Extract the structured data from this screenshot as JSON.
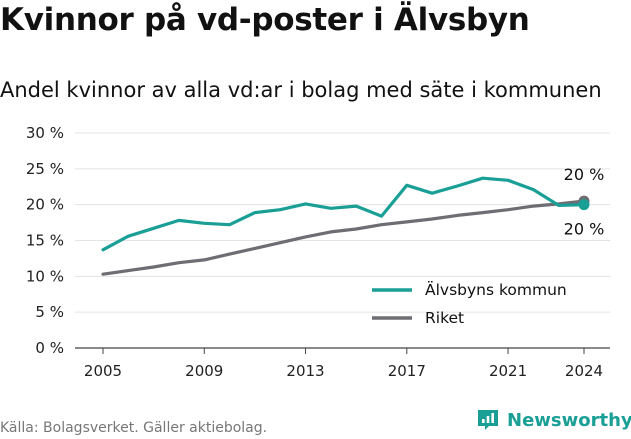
{
  "header": {
    "title": "Kvinnor på vd-poster i Älvsbyn",
    "subtitle": "Andel kvinnor av alla vd:ar i bolag med säte i kommunen"
  },
  "footer": {
    "source": "Källa: Bolagsverket. Gäller aktiebolag.",
    "brand": "Newsworthy",
    "brand_icon": "newsworthy-chart-icon",
    "brand_color": "#1a9f96"
  },
  "chart_data": {
    "type": "line",
    "title": "Kvinnor på vd-poster i Älvsbyn",
    "subtitle": "Andel kvinnor av alla vd:ar i bolag med säte i kommunen",
    "xlabel": "",
    "ylabel": "",
    "x": [
      2005,
      2006,
      2007,
      2008,
      2009,
      2010,
      2011,
      2012,
      2013,
      2014,
      2015,
      2016,
      2017,
      2018,
      2019,
      2020,
      2021,
      2022,
      2023,
      2024
    ],
    "x_ticks": [
      2005,
      2009,
      2013,
      2017,
      2021,
      2024
    ],
    "x_tick_labels": [
      "2005",
      "2009",
      "2013",
      "2017",
      "2021",
      "2024"
    ],
    "xlim": [
      2005,
      2024
    ],
    "ylim": [
      0,
      30
    ],
    "y_ticks": [
      0,
      5,
      10,
      15,
      20,
      25,
      30
    ],
    "y_tick_labels": [
      "0 %",
      "5 %",
      "10 %",
      "15 %",
      "20 %",
      "25 %",
      "30 %"
    ],
    "grid": "horizontal",
    "legend_position": "bottom-right",
    "series": [
      {
        "name": "Älvsbyns kommun",
        "color": "#1a9f96",
        "values": [
          13.7,
          15.6,
          16.7,
          17.8,
          17.4,
          17.2,
          18.9,
          19.3,
          20.1,
          19.5,
          19.8,
          18.4,
          22.7,
          21.6,
          22.6,
          23.7,
          23.4,
          22.1,
          19.9,
          20.0
        ],
        "end_label": "20 %"
      },
      {
        "name": "Riket",
        "color": "#6e6d73",
        "values": [
          10.3,
          10.8,
          11.3,
          11.9,
          12.3,
          13.1,
          13.9,
          14.7,
          15.5,
          16.2,
          16.6,
          17.2,
          17.6,
          18.0,
          18.5,
          18.9,
          19.3,
          19.8,
          20.1,
          20.5
        ],
        "end_label": "20 %"
      }
    ]
  }
}
